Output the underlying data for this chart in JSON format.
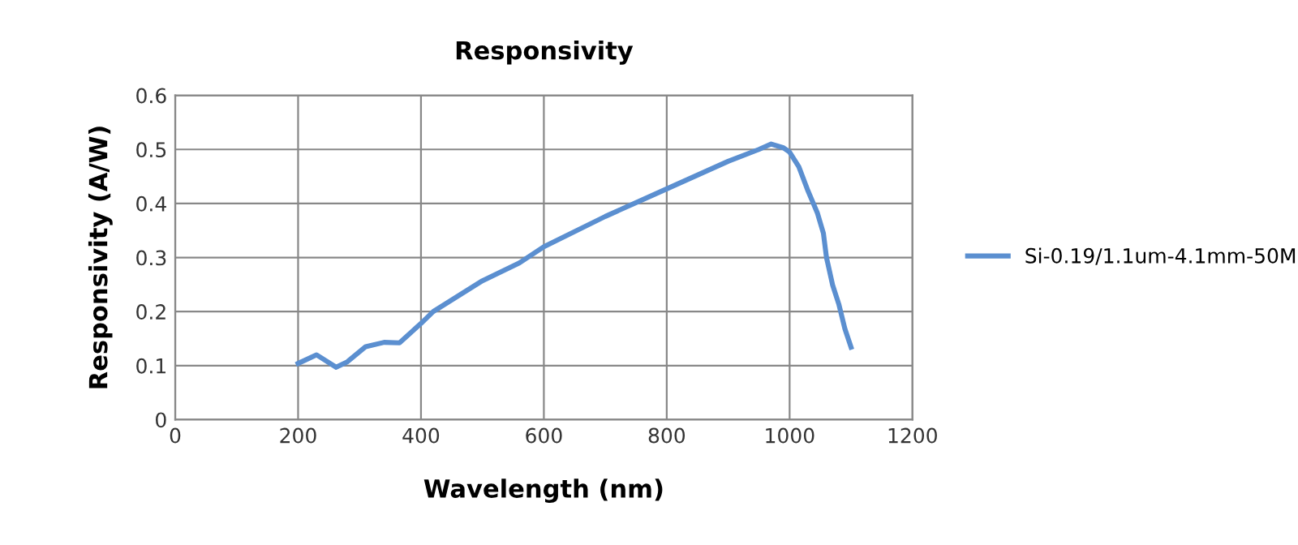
{
  "chart_data": {
    "type": "line",
    "title": "Responsivity",
    "xlabel": "Wavelength (nm)",
    "ylabel": "Responsivity (A/W)",
    "xlim": [
      0,
      1200
    ],
    "xticks": [
      0,
      200,
      400,
      600,
      800,
      1000,
      1200
    ],
    "ylim": [
      0,
      0.6
    ],
    "yticks": [
      0,
      0.1,
      0.2,
      0.3,
      0.4,
      0.5,
      0.6
    ],
    "grid": true,
    "legend": "right",
    "line_style": "solid",
    "marker": "none",
    "series": [
      {
        "name": "Si-0.19/1.1um-4.1mm-50M",
        "color": "#5b8fd0",
        "x": [
          200,
          230,
          262,
          280,
          310,
          340,
          365,
          400,
          420,
          500,
          560,
          580,
          600,
          700,
          800,
          900,
          950,
          970,
          990,
          1000,
          1015,
          1030,
          1045,
          1055,
          1060,
          1070,
          1080,
          1090,
          1100
        ],
        "values": [
          0.104,
          0.12,
          0.097,
          0.107,
          0.135,
          0.143,
          0.142,
          0.178,
          0.2,
          0.257,
          0.29,
          0.305,
          0.32,
          0.376,
          0.427,
          0.478,
          0.5,
          0.51,
          0.503,
          0.495,
          0.468,
          0.423,
          0.383,
          0.345,
          0.3,
          0.249,
          0.214,
          0.168,
          0.134
        ]
      }
    ]
  }
}
